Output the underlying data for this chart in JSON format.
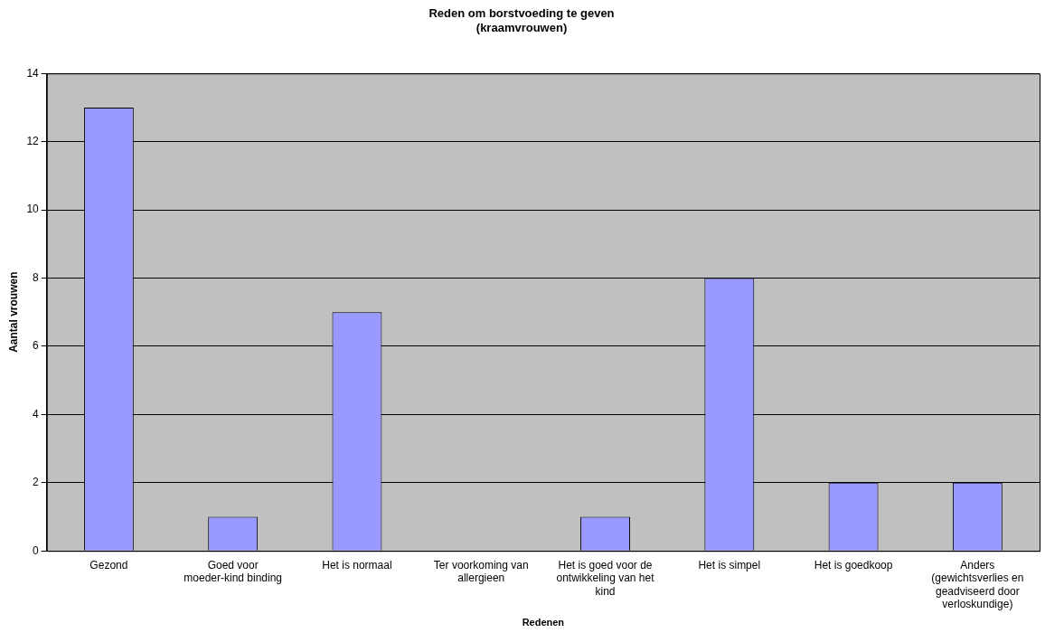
{
  "chart_data": {
    "type": "bar",
    "title": "Reden om borstvoeding te geven\n(kraamvrouwen)",
    "xlabel": "Redenen",
    "ylabel": "Aantal vrouwen",
    "categories": [
      "Gezond",
      "Goed voor moeder-kind binding",
      "Het is normaal",
      "Ter voorkoming van allergieen",
      "Het is goed voor de ontwikkeling van het kind",
      "Het is simpel",
      "Het is goedkoop",
      "Anders (gewichtsverlies en geadviseerd door verloskundige)"
    ],
    "values": [
      13,
      1,
      7,
      0,
      1,
      8,
      2,
      2
    ],
    "color": "#9999ff",
    "ylim": [
      0,
      14
    ],
    "yticks": [
      0,
      2,
      4,
      6,
      8,
      10,
      12,
      14
    ],
    "grid": "y",
    "legend": false
  }
}
